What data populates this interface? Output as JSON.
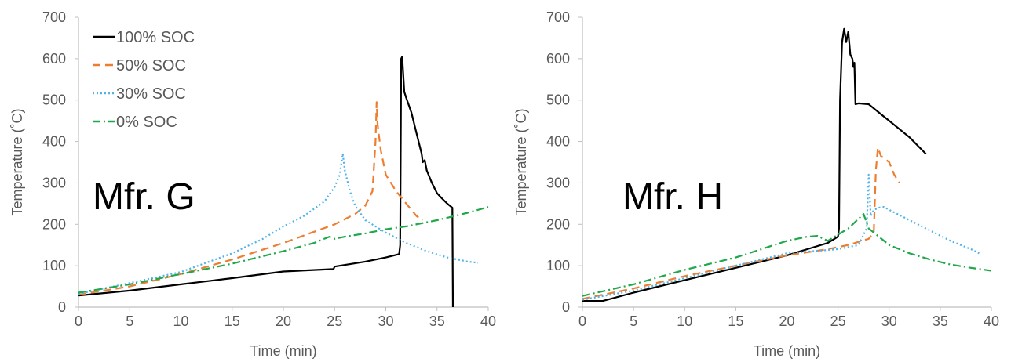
{
  "chart_data": [
    {
      "type": "line",
      "annotation": "Mfr. G",
      "xlabel": "Time (min)",
      "ylabel": "Temperature (˚C)",
      "xlim": [
        0,
        40
      ],
      "ylim": [
        0,
        700
      ],
      "xticks": [
        "0",
        "5",
        "10",
        "15",
        "20",
        "25",
        "30",
        "35",
        "40"
      ],
      "yticks": [
        "0",
        "100",
        "200",
        "300",
        "400",
        "500",
        "600",
        "700"
      ],
      "grid": false,
      "legend_position": "top-left",
      "series": [
        {
          "name": "100% SOC",
          "color": "#000000",
          "dash": "solid",
          "points": [
            [
              0,
              28
            ],
            [
              5,
              40
            ],
            [
              10,
              55
            ],
            [
              15,
              70
            ],
            [
              20,
              86
            ],
            [
              24.9,
              92
            ],
            [
              25,
              98
            ],
            [
              28,
              110
            ],
            [
              30,
              120
            ],
            [
              31.3,
              128
            ],
            [
              31.4,
              150
            ],
            [
              31.5,
              600
            ],
            [
              31.6,
              605
            ],
            [
              31.8,
              520
            ],
            [
              32,
              505
            ],
            [
              32.5,
              470
            ],
            [
              33,
              420
            ],
            [
              33.5,
              370
            ],
            [
              33.6,
              350
            ],
            [
              33.8,
              355
            ],
            [
              34,
              330
            ],
            [
              34.5,
              300
            ],
            [
              35,
              275
            ],
            [
              35.5,
              262
            ],
            [
              36,
              250
            ],
            [
              36.5,
              240
            ],
            [
              36.55,
              0
            ]
          ]
        },
        {
          "name": "50% SOC",
          "color": "#ED7D31",
          "dash": "dashed",
          "points": [
            [
              0,
              30
            ],
            [
              5,
              50
            ],
            [
              10,
              80
            ],
            [
              15,
              115
            ],
            [
              20,
              155
            ],
            [
              25,
              200
            ],
            [
              27,
              225
            ],
            [
              28,
              245
            ],
            [
              28.7,
              280
            ],
            [
              29,
              400
            ],
            [
              29.1,
              495
            ],
            [
              29.2,
              440
            ],
            [
              29.5,
              380
            ],
            [
              30,
              320
            ],
            [
              31,
              280
            ],
            [
              32,
              250
            ],
            [
              33,
              220
            ],
            [
              33.6,
              210
            ]
          ]
        },
        {
          "name": "30% SOC",
          "color": "#4FB3E8",
          "dash": "dotted",
          "points": [
            [
              0,
              32
            ],
            [
              5,
              58
            ],
            [
              10,
              85
            ],
            [
              15,
              130
            ],
            [
              18,
              165
            ],
            [
              20,
              195
            ],
            [
              22,
              220
            ],
            [
              24,
              255
            ],
            [
              25,
              290
            ],
            [
              25.5,
              320
            ],
            [
              25.8,
              370
            ],
            [
              26,
              330
            ],
            [
              26.5,
              280
            ],
            [
              27,
              245
            ],
            [
              28,
              210
            ],
            [
              30,
              180
            ],
            [
              32,
              155
            ],
            [
              34,
              135
            ],
            [
              36,
              120
            ],
            [
              38,
              110
            ],
            [
              39,
              107
            ]
          ]
        },
        {
          "name": "0% SOC",
          "color": "#1FA84A",
          "dash": "dashdot",
          "points": [
            [
              0,
              35
            ],
            [
              5,
              55
            ],
            [
              10,
              80
            ],
            [
              15,
              105
            ],
            [
              20,
              135
            ],
            [
              23,
              155
            ],
            [
              24.5,
              170
            ],
            [
              25,
              165
            ],
            [
              26,
              170
            ],
            [
              28,
              178
            ],
            [
              30,
              188
            ],
            [
              32,
              195
            ],
            [
              35,
              210
            ],
            [
              38,
              228
            ],
            [
              40,
              242
            ]
          ]
        }
      ]
    },
    {
      "type": "line",
      "annotation": "Mfr. H",
      "xlabel": "Time (min)",
      "ylabel": "Temperature (˚C)",
      "xlim": [
        0,
        40
      ],
      "ylim": [
        0,
        700
      ],
      "xticks": [
        "0",
        "5",
        "10",
        "15",
        "20",
        "25",
        "30",
        "35",
        "40"
      ],
      "yticks": [
        "0",
        "100",
        "200",
        "300",
        "400",
        "500",
        "600",
        "700"
      ],
      "grid": false,
      "legend_position": "none",
      "series": [
        {
          "name": "100% SOC",
          "color": "#000000",
          "dash": "solid",
          "points": [
            [
              0,
              15
            ],
            [
              2,
              15
            ],
            [
              5,
              35
            ],
            [
              10,
              65
            ],
            [
              15,
              95
            ],
            [
              20,
              125
            ],
            [
              22,
              140
            ],
            [
              24,
              155
            ],
            [
              25,
              170
            ],
            [
              25.1,
              190
            ],
            [
              25.2,
              500
            ],
            [
              25.4,
              640
            ],
            [
              25.6,
              672
            ],
            [
              25.8,
              640
            ],
            [
              26,
              665
            ],
            [
              26.2,
              610
            ],
            [
              26.4,
              600
            ],
            [
              26.5,
              580
            ],
            [
              26.6,
              590
            ],
            [
              26.7,
              490
            ],
            [
              27,
              492
            ],
            [
              28,
              490
            ],
            [
              29,
              470
            ],
            [
              30,
              450
            ],
            [
              31,
              430
            ],
            [
              32,
              410
            ],
            [
              33,
              385
            ],
            [
              33.6,
              370
            ]
          ]
        },
        {
          "name": "50% SOC",
          "color": "#ED7D31",
          "dash": "dashed",
          "points": [
            [
              0,
              20
            ],
            [
              5,
              45
            ],
            [
              10,
              75
            ],
            [
              15,
              100
            ],
            [
              20,
              125
            ],
            [
              24,
              140
            ],
            [
              26,
              150
            ],
            [
              28,
              165
            ],
            [
              28.5,
              180
            ],
            [
              28.7,
              330
            ],
            [
              28.9,
              385
            ],
            [
              29.2,
              365
            ],
            [
              30,
              350
            ],
            [
              30.5,
              320
            ],
            [
              31,
              300
            ]
          ]
        },
        {
          "name": "30% SOC",
          "color": "#4FB3E8",
          "dash": "dotted",
          "points": [
            [
              0,
              18
            ],
            [
              5,
              40
            ],
            [
              10,
              70
            ],
            [
              15,
              100
            ],
            [
              20,
              130
            ],
            [
              25,
              140
            ],
            [
              27,
              150
            ],
            [
              27.8,
              190
            ],
            [
              28,
              320
            ],
            [
              28.2,
              220
            ],
            [
              28.5,
              235
            ],
            [
              29,
              240
            ],
            [
              29.5,
              242
            ],
            [
              30,
              235
            ],
            [
              32,
              210
            ],
            [
              34,
              185
            ],
            [
              36,
              160
            ],
            [
              38,
              140
            ],
            [
              38.8,
              130
            ]
          ]
        },
        {
          "name": "0% SOC",
          "color": "#1FA84A",
          "dash": "dashdot",
          "points": [
            [
              0,
              27
            ],
            [
              5,
              55
            ],
            [
              10,
              90
            ],
            [
              15,
              120
            ],
            [
              20,
              160
            ],
            [
              22,
              170
            ],
            [
              23,
              172
            ],
            [
              24,
              160
            ],
            [
              26,
              190
            ],
            [
              27.5,
              225
            ],
            [
              28,
              190
            ],
            [
              29,
              170
            ],
            [
              30,
              150
            ],
            [
              32,
              130
            ],
            [
              34,
              115
            ],
            [
              36,
              103
            ],
            [
              38,
              95
            ],
            [
              40,
              88
            ]
          ]
        }
      ]
    }
  ]
}
